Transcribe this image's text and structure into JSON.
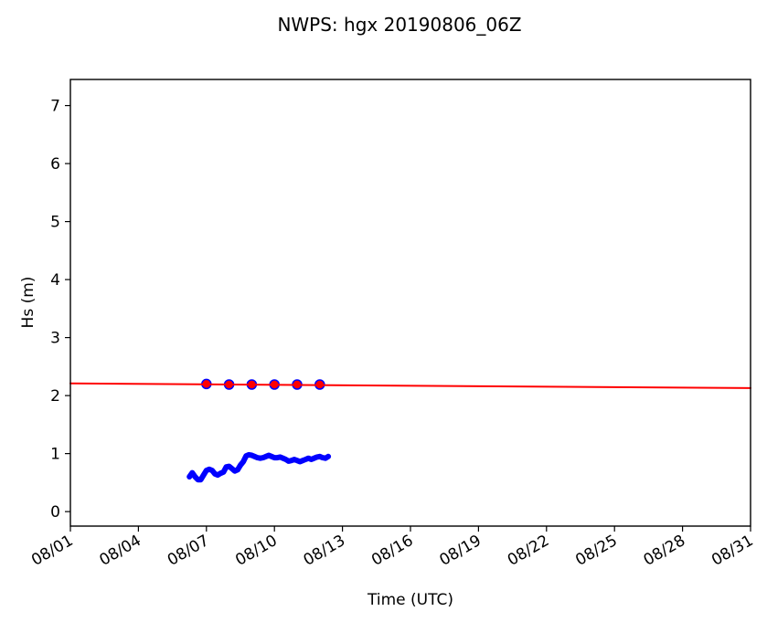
{
  "chart_data": {
    "type": "line",
    "title": "NWPS: hgx 20190806_06Z",
    "xlabel": "Time (UTC)",
    "ylabel": "Hs (m)",
    "xlim": [
      "2019-08-01",
      "2019-08-31"
    ],
    "ylim": [
      -0.25,
      7.45
    ],
    "x_ticks": [
      "08/01",
      "08/04",
      "08/07",
      "08/10",
      "08/13",
      "08/16",
      "08/19",
      "08/22",
      "08/25",
      "08/28",
      "08/31"
    ],
    "y_ticks": [
      "0",
      "1",
      "2",
      "3",
      "4",
      "5",
      "6",
      "7"
    ],
    "grid": false,
    "legend": "none",
    "series": [
      {
        "style": "thick-line",
        "color": "#0000ff",
        "x": [
          "2019-08-06 06:00",
          "2019-08-06 09:00",
          "2019-08-06 12:00",
          "2019-08-06 15:00",
          "2019-08-06 18:00",
          "2019-08-06 21:00",
          "2019-08-07 00:00",
          "2019-08-07 03:00",
          "2019-08-07 06:00",
          "2019-08-07 09:00",
          "2019-08-07 12:00",
          "2019-08-07 15:00",
          "2019-08-07 18:00",
          "2019-08-07 21:00",
          "2019-08-08 00:00",
          "2019-08-08 03:00",
          "2019-08-08 06:00",
          "2019-08-08 09:00",
          "2019-08-08 12:00",
          "2019-08-08 15:00",
          "2019-08-08 18:00",
          "2019-08-08 21:00",
          "2019-08-09 00:00",
          "2019-08-09 03:00",
          "2019-08-09 06:00",
          "2019-08-09 09:00",
          "2019-08-09 12:00",
          "2019-08-09 15:00",
          "2019-08-09 18:00",
          "2019-08-09 21:00",
          "2019-08-10 00:00",
          "2019-08-10 03:00",
          "2019-08-10 06:00",
          "2019-08-10 09:00",
          "2019-08-10 12:00",
          "2019-08-10 15:00",
          "2019-08-10 18:00",
          "2019-08-10 21:00",
          "2019-08-11 00:00",
          "2019-08-11 03:00",
          "2019-08-11 06:00",
          "2019-08-11 09:00",
          "2019-08-11 12:00",
          "2019-08-11 15:00",
          "2019-08-11 18:00",
          "2019-08-11 21:00",
          "2019-08-12 00:00",
          "2019-08-12 03:00",
          "2019-08-12 06:00",
          "2019-08-12 09:00"
        ],
        "values": [
          0.6,
          0.67,
          0.6,
          0.55,
          0.55,
          0.63,
          0.71,
          0.73,
          0.71,
          0.65,
          0.63,
          0.66,
          0.68,
          0.77,
          0.78,
          0.74,
          0.7,
          0.72,
          0.8,
          0.86,
          0.96,
          0.98,
          0.97,
          0.95,
          0.93,
          0.92,
          0.93,
          0.95,
          0.97,
          0.95,
          0.93,
          0.93,
          0.94,
          0.92,
          0.9,
          0.87,
          0.88,
          0.9,
          0.88,
          0.86,
          0.88,
          0.9,
          0.92,
          0.9,
          0.92,
          0.94,
          0.95,
          0.93,
          0.92,
          0.95
        ]
      },
      {
        "style": "markers",
        "color": "#0000ff",
        "marker_fill": "#ff0000",
        "x": [
          "2019-08-07 00:00",
          "2019-08-08 00:00",
          "2019-08-09 00:00",
          "2019-08-10 00:00",
          "2019-08-11 00:00",
          "2019-08-12 00:00"
        ],
        "values": [
          2.2,
          2.19,
          2.19,
          2.19,
          2.19,
          2.19
        ]
      },
      {
        "style": "line",
        "color": "#ff0000",
        "x": [
          "2019-08-01 00:00",
          "2019-08-31 00:00"
        ],
        "values": [
          2.21,
          2.13
        ]
      }
    ]
  }
}
